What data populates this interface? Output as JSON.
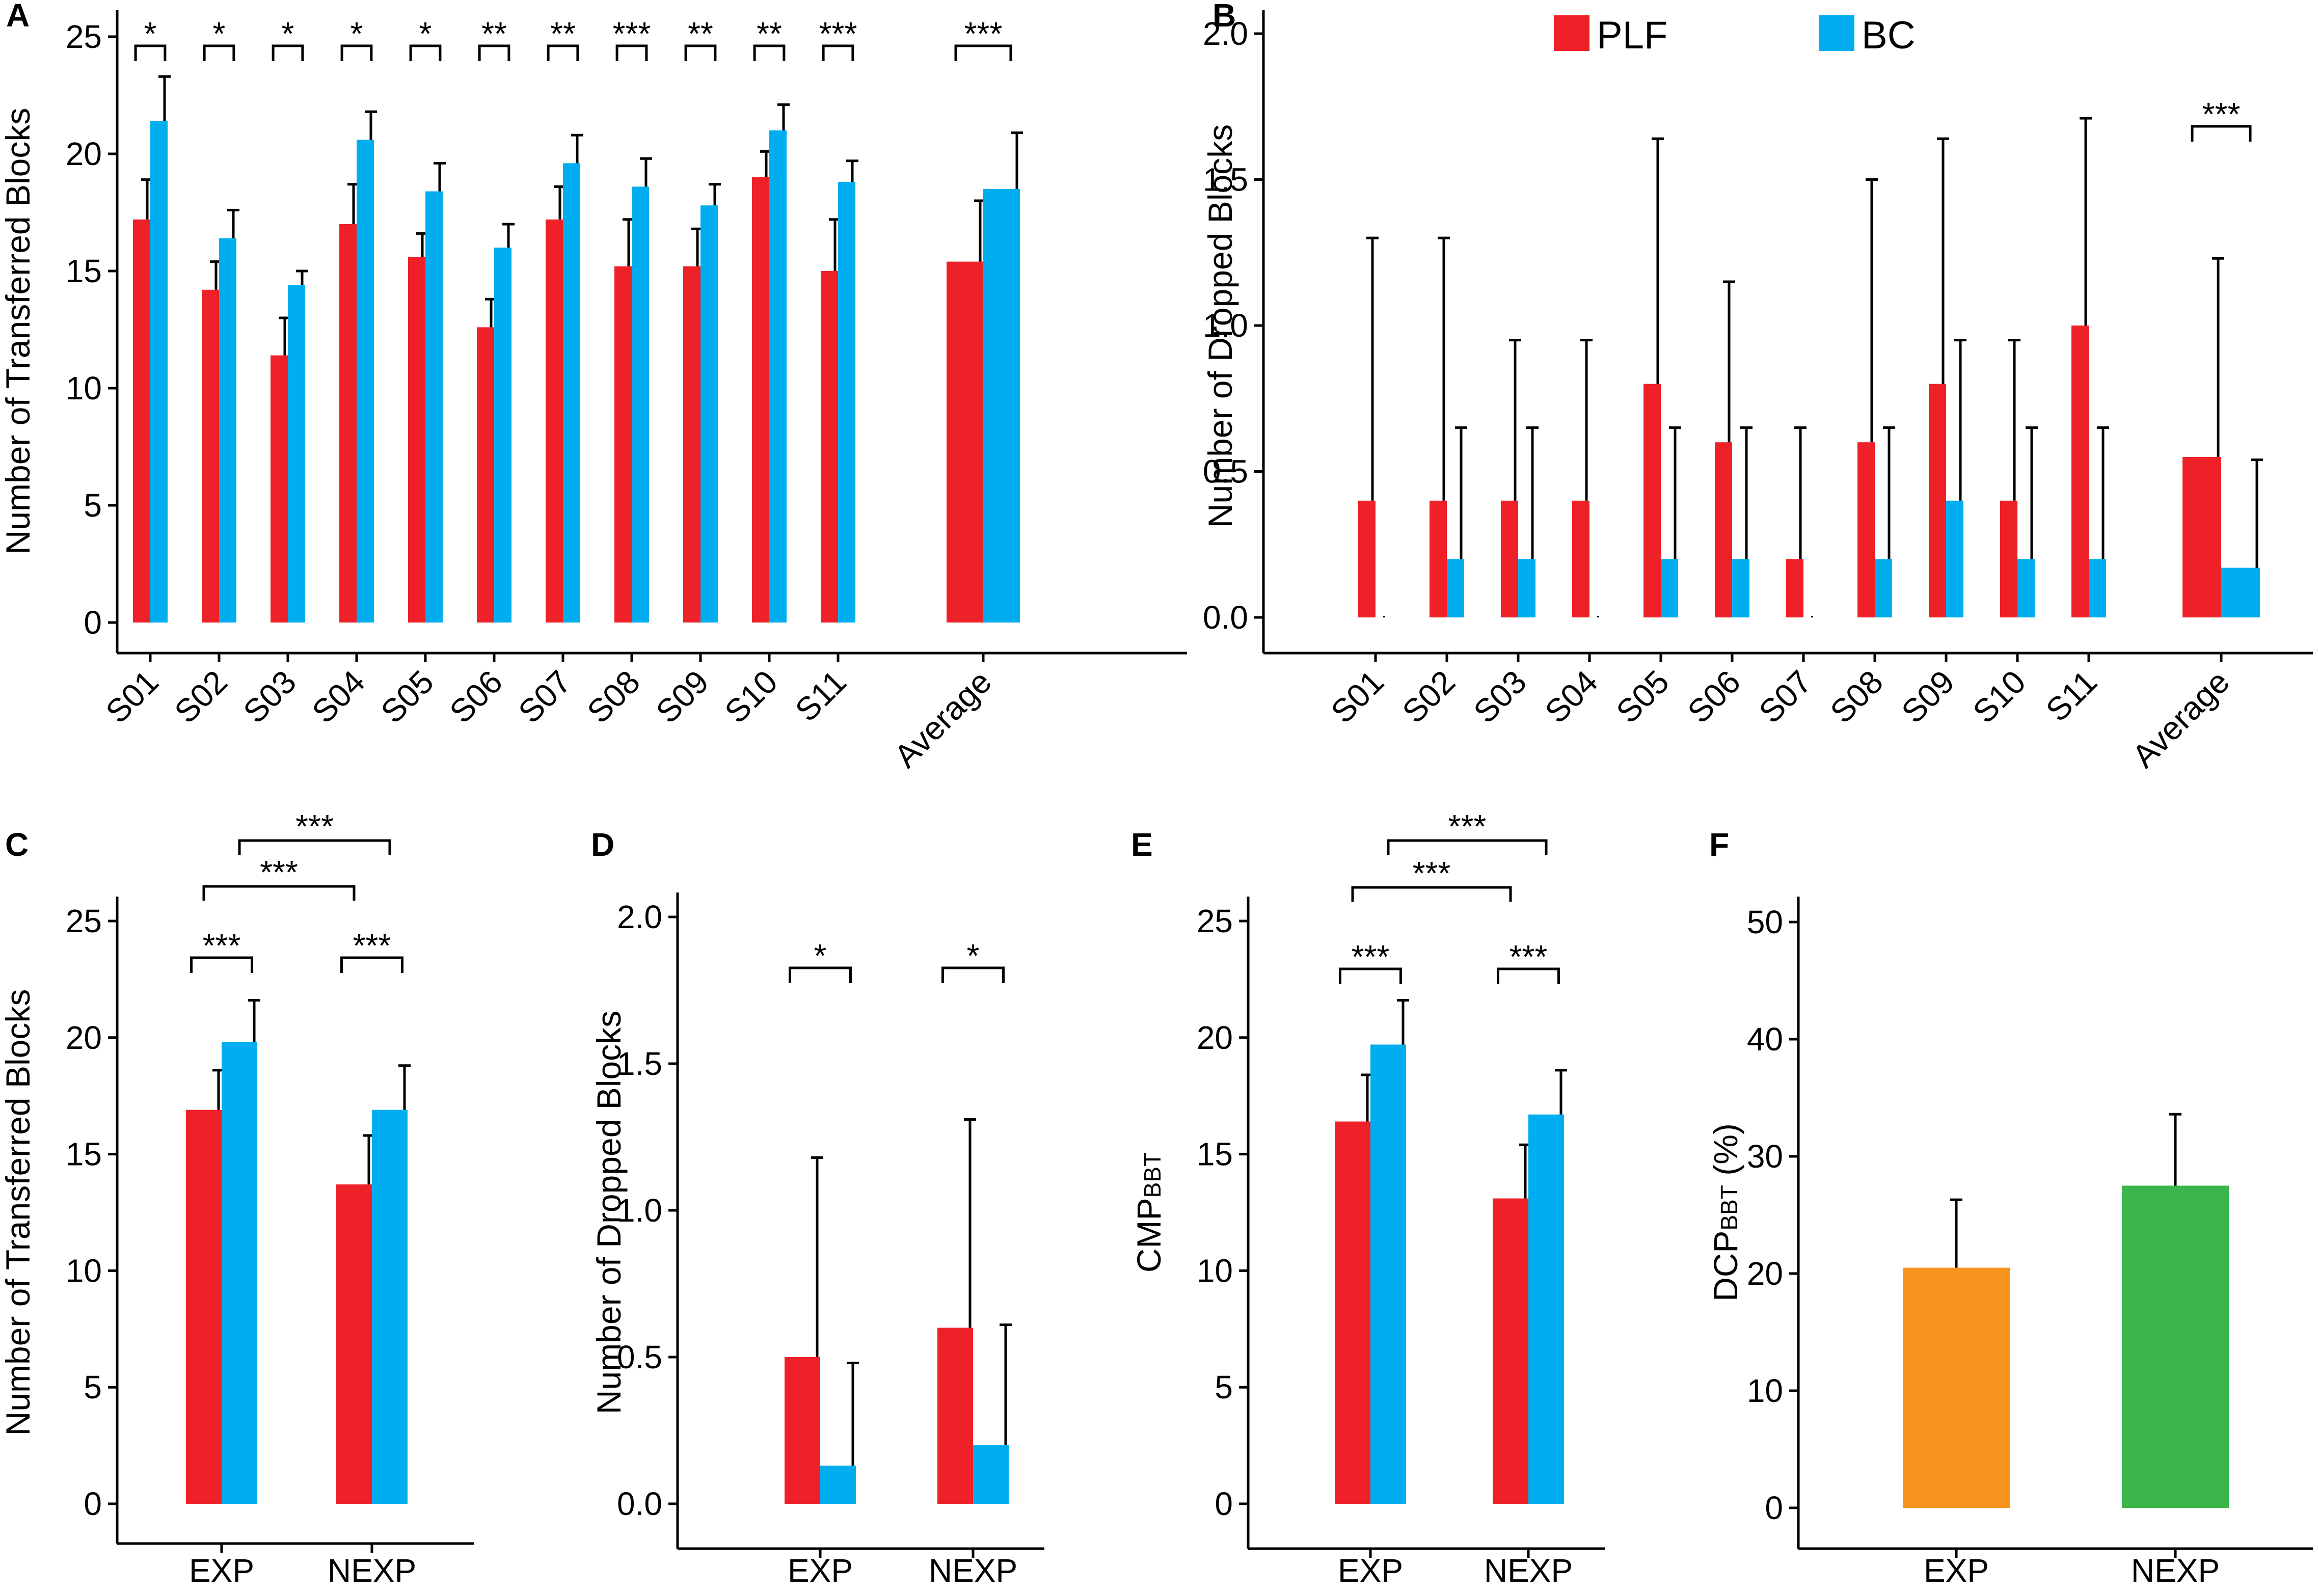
{
  "colors": {
    "PLF": "#ee2028",
    "BC": "#00aeef",
    "EXP": "#f7941d",
    "NEXP": "#39b54a"
  },
  "legend": {
    "items": [
      {
        "label": "PLF",
        "color": "#ee2028"
      },
      {
        "label": "BC",
        "color": "#00aeef"
      }
    ]
  },
  "chart_data": [
    {
      "id": "A",
      "letter": "A",
      "type": "bar",
      "ylabel": "Number of  Transferred Blocks",
      "ylim": [
        0,
        25
      ],
      "yticks": [
        "0",
        "5",
        "10",
        "15",
        "20",
        "25"
      ],
      "categories": [
        "S01",
        "S02",
        "S03",
        "S04",
        "S05",
        "S06",
        "S07",
        "S08",
        "S09",
        "S10",
        "S11",
        "Average"
      ],
      "series": [
        {
          "name": "PLF",
          "values": [
            17.2,
            14.2,
            11.4,
            17.0,
            15.6,
            12.6,
            17.2,
            15.2,
            15.2,
            19.0,
            15.0,
            15.4
          ],
          "errors": [
            1.7,
            1.2,
            1.6,
            1.7,
            1.0,
            1.2,
            1.4,
            2.0,
            1.6,
            1.1,
            2.2,
            2.6
          ]
        },
        {
          "name": "BC",
          "values": [
            21.4,
            16.4,
            14.4,
            20.6,
            18.4,
            16.0,
            19.6,
            18.6,
            17.8,
            21.0,
            18.8,
            18.5
          ],
          "errors": [
            1.9,
            1.2,
            0.6,
            1.2,
            1.2,
            1.0,
            1.2,
            1.2,
            0.9,
            1.1,
            0.9,
            2.4
          ]
        }
      ],
      "significance": [
        "*",
        "*",
        "*",
        "*",
        "*",
        "**",
        "**",
        "***",
        "**",
        "**",
        "***",
        "***"
      ]
    },
    {
      "id": "B",
      "letter": "B",
      "type": "bar",
      "ylabel": "Number of Dropped Blocks",
      "ylim": [
        0,
        2
      ],
      "yticks": [
        "0.0",
        "0.5",
        "1.0",
        "1.5",
        "2.0"
      ],
      "categories": [
        "S01",
        "S02",
        "S03",
        "S04",
        "S05",
        "S06",
        "S07",
        "S08",
        "S09",
        "S10",
        "S11",
        "Average"
      ],
      "series": [
        {
          "name": "PLF",
          "values": [
            0.4,
            0.4,
            0.4,
            0.4,
            0.8,
            0.6,
            0.2,
            0.6,
            0.8,
            0.4,
            1.0,
            0.55
          ],
          "errors": [
            0.9,
            0.9,
            0.55,
            0.55,
            0.84,
            0.55,
            0.45,
            0.9,
            0.84,
            0.55,
            0.71,
            0.68
          ]
        },
        {
          "name": "BC",
          "values": [
            0,
            0.2,
            0.2,
            0,
            0.2,
            0.2,
            0,
            0.2,
            0.4,
            0.2,
            0.2,
            0.17
          ],
          "errors": [
            0,
            0.45,
            0.45,
            0,
            0.45,
            0.45,
            0,
            0.45,
            0.55,
            0.45,
            0.45,
            0.37
          ]
        }
      ],
      "significance": [
        "",
        "",
        "",
        "",
        "",
        "",
        "",
        "",
        "",
        "",
        "",
        "***"
      ]
    },
    {
      "id": "C",
      "letter": "C",
      "type": "bar",
      "ylabel": "Number of  Transferred Blocks",
      "ylim": [
        0,
        25
      ],
      "yticks": [
        "0",
        "5",
        "10",
        "15",
        "20",
        "25"
      ],
      "categories": [
        "EXP",
        "NEXP"
      ],
      "series": [
        {
          "name": "PLF",
          "values": [
            16.9,
            13.7
          ],
          "errors": [
            1.7,
            2.1
          ]
        },
        {
          "name": "BC",
          "values": [
            19.8,
            16.9
          ],
          "errors": [
            1.8,
            1.9
          ]
        }
      ],
      "significance": [
        "***",
        "***"
      ],
      "between": [
        {
          "label": "***",
          "series": "PLF"
        },
        {
          "label": "***",
          "series": "BC"
        }
      ]
    },
    {
      "id": "D",
      "letter": "D",
      "type": "bar",
      "ylabel": "Number of Dropped Blocks",
      "ylim": [
        0,
        2
      ],
      "yticks": [
        "0.0",
        "0.5",
        "1.0",
        "1.5",
        "2.0"
      ],
      "categories": [
        "EXP",
        "NEXP"
      ],
      "series": [
        {
          "name": "PLF",
          "values": [
            0.5,
            0.6
          ],
          "errors": [
            0.68,
            0.71
          ]
        },
        {
          "name": "BC",
          "values": [
            0.13,
            0.2
          ],
          "errors": [
            0.35,
            0.41
          ]
        }
      ],
      "significance": [
        "*",
        "*"
      ]
    },
    {
      "id": "E",
      "letter": "E",
      "type": "bar",
      "ylabel": "CMP",
      "ylabel_sub": "BBT",
      "ylim": [
        0,
        25
      ],
      "yticks": [
        "0",
        "5",
        "10",
        "15",
        "20",
        "25"
      ],
      "categories": [
        "EXP",
        "NEXP"
      ],
      "series": [
        {
          "name": "PLF",
          "values": [
            16.4,
            13.1
          ],
          "errors": [
            2.0,
            2.3
          ]
        },
        {
          "name": "BC",
          "values": [
            19.7,
            16.7
          ],
          "errors": [
            1.9,
            1.9
          ]
        }
      ],
      "significance": [
        "***",
        "***"
      ],
      "between": [
        {
          "label": "***",
          "series": "PLF"
        },
        {
          "label": "***",
          "series": "BC"
        }
      ]
    },
    {
      "id": "F",
      "letter": "F",
      "type": "bar",
      "ylabel": "DCP",
      "ylabel_sub": "BBT",
      "ylabel_suffix": " (%)",
      "ylim": [
        0,
        50
      ],
      "yticks": [
        "0",
        "10",
        "20",
        "30",
        "40",
        "50"
      ],
      "categories": [
        "EXP",
        "NEXP"
      ],
      "series": [
        {
          "name": "DCP",
          "values": [
            20.5,
            27.5
          ],
          "errors": [
            5.8,
            6.1
          ],
          "colors": [
            "#f7941d",
            "#39b54a"
          ]
        }
      ],
      "significance": []
    }
  ]
}
